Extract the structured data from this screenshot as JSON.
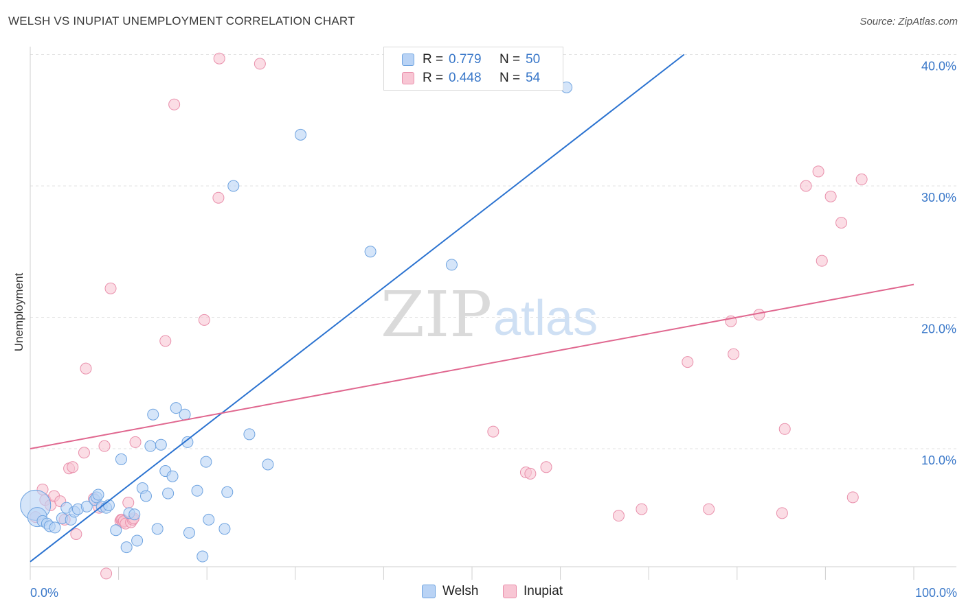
{
  "title": "WELSH VS INUPIAT UNEMPLOYMENT CORRELATION CHART",
  "source": "Source: ZipAtlas.com",
  "watermark": {
    "zip": "ZIP",
    "atlas": "atlas"
  },
  "colors": {
    "welsh_fill": "#b9d3f5",
    "welsh_stroke": "#6ea3e0",
    "welsh_line": "#2a72d0",
    "inupiat_fill": "#f8c6d4",
    "inupiat_stroke": "#e98fab",
    "inupiat_line": "#e0678f",
    "tick_label": "#3a78c9",
    "grid": "#e2e2e2"
  },
  "legend": {
    "rows": [
      {
        "r_label": "R =",
        "r_value": "0.779",
        "n_label": "N =",
        "n_value": "50"
      },
      {
        "r_label": "R =",
        "r_value": "0.448",
        "n_label": "N =",
        "n_value": "54"
      }
    ]
  },
  "bottom_legend": [
    "Welsh",
    "Inupiat"
  ],
  "chart_data": {
    "type": "scatter",
    "title": "WELSH VS INUPIAT UNEMPLOYMENT CORRELATION CHART",
    "xlabel": "",
    "ylabel": "Unemployment",
    "xlim": [
      0,
      100
    ],
    "ylim": [
      0,
      41
    ],
    "x_tick_labels": [
      "0.0%",
      "100.0%"
    ],
    "y_ticks": [
      10,
      20,
      30,
      40
    ],
    "y_tick_labels": [
      "10.0%",
      "20.0%",
      "30.0%",
      "40.0%"
    ],
    "grid": "horizontal dashed",
    "legend_position": "top-center",
    "series": [
      {
        "name": "Welsh",
        "r": 0.779,
        "n": 50,
        "trend": {
          "x0": 0,
          "y0": 1.4,
          "x1": 74,
          "y1": 40.0
        },
        "points": [
          [
            0.6,
            5.7,
            22
          ],
          [
            0.8,
            4.8,
            14
          ],
          [
            1.4,
            4.5,
            8
          ],
          [
            1.9,
            4.3,
            8
          ],
          [
            2.2,
            4.1,
            8
          ],
          [
            2.8,
            4.0,
            8
          ],
          [
            3.6,
            4.7,
            8
          ],
          [
            4.1,
            5.5,
            8
          ],
          [
            4.6,
            4.6,
            8
          ],
          [
            5.0,
            5.2,
            8
          ],
          [
            5.4,
            5.4,
            8
          ],
          [
            6.4,
            5.6,
            8
          ],
          [
            7.3,
            6.1,
            8
          ],
          [
            7.5,
            6.3,
            8
          ],
          [
            7.7,
            6.5,
            8
          ],
          [
            8.1,
            5.6,
            8
          ],
          [
            8.6,
            5.5,
            8
          ],
          [
            8.9,
            5.7,
            8
          ],
          [
            9.7,
            3.8,
            8
          ],
          [
            10.3,
            9.2,
            8
          ],
          [
            10.9,
            2.5,
            8
          ],
          [
            11.2,
            5.1,
            8
          ],
          [
            11.8,
            5.0,
            8
          ],
          [
            12.1,
            3.0,
            8
          ],
          [
            12.7,
            7.0,
            8
          ],
          [
            13.1,
            6.4,
            8
          ],
          [
            13.6,
            10.2,
            8
          ],
          [
            13.9,
            12.6,
            8
          ],
          [
            14.4,
            3.9,
            8
          ],
          [
            14.8,
            10.3,
            8
          ],
          [
            15.3,
            8.3,
            8
          ],
          [
            15.6,
            6.6,
            8
          ],
          [
            16.1,
            7.9,
            8
          ],
          [
            16.5,
            13.1,
            8
          ],
          [
            17.5,
            12.6,
            8
          ],
          [
            17.8,
            10.5,
            8
          ],
          [
            18.0,
            3.6,
            8
          ],
          [
            18.9,
            6.8,
            8
          ],
          [
            19.5,
            1.8,
            8
          ],
          [
            19.9,
            9.0,
            8
          ],
          [
            20.2,
            4.6,
            8
          ],
          [
            22.0,
            3.9,
            8
          ],
          [
            23.0,
            30.0,
            8
          ],
          [
            24.8,
            11.1,
            8
          ],
          [
            26.9,
            8.8,
            8
          ],
          [
            30.6,
            33.9,
            8
          ],
          [
            38.5,
            25.0,
            8
          ],
          [
            47.7,
            24.0,
            8
          ],
          [
            60.7,
            37.5,
            8
          ],
          [
            22.3,
            6.7,
            8
          ]
        ]
      },
      {
        "name": "Inupiat",
        "r": 0.448,
        "n": 54,
        "trend": {
          "x0": 0,
          "y0": 10.0,
          "x1": 100,
          "y1": 22.5
        },
        "points": [
          [
            0.6,
            4.8,
            8
          ],
          [
            1.4,
            6.9,
            8
          ],
          [
            1.7,
            6.1,
            8
          ],
          [
            2.3,
            5.7,
            8
          ],
          [
            2.7,
            6.4,
            8
          ],
          [
            3.4,
            6.0,
            8
          ],
          [
            3.9,
            4.6,
            8
          ],
          [
            4.4,
            8.5,
            8
          ],
          [
            4.8,
            8.6,
            8
          ],
          [
            5.2,
            3.5,
            8
          ],
          [
            6.1,
            9.7,
            8
          ],
          [
            6.3,
            16.1,
            8
          ],
          [
            7.2,
            6.2,
            8
          ],
          [
            7.8,
            5.5,
            8
          ],
          [
            8.4,
            10.2,
            8
          ],
          [
            8.6,
            0.5,
            8
          ],
          [
            9.1,
            22.2,
            8
          ],
          [
            10.2,
            4.5,
            8
          ],
          [
            10.3,
            4.6,
            8
          ],
          [
            10.4,
            4.6,
            8
          ],
          [
            10.5,
            4.4,
            8
          ],
          [
            10.6,
            4.5,
            8
          ],
          [
            10.8,
            4.3,
            8
          ],
          [
            11.1,
            5.9,
            8
          ],
          [
            11.4,
            4.4,
            8
          ],
          [
            11.6,
            4.6,
            8
          ],
          [
            11.7,
            4.7,
            8
          ],
          [
            11.9,
            10.5,
            8
          ],
          [
            15.3,
            18.2,
            8
          ],
          [
            16.3,
            36.2,
            8
          ],
          [
            19.7,
            19.8,
            8
          ],
          [
            21.3,
            29.1,
            8
          ],
          [
            21.4,
            39.7,
            8
          ],
          [
            26.0,
            39.3,
            8
          ],
          [
            52.4,
            11.3,
            8
          ],
          [
            56.1,
            8.2,
            8
          ],
          [
            56.6,
            8.1,
            8
          ],
          [
            58.4,
            8.6,
            8
          ],
          [
            66.6,
            4.9,
            8
          ],
          [
            69.2,
            5.4,
            8
          ],
          [
            74.4,
            16.6,
            8
          ],
          [
            76.8,
            5.4,
            8
          ],
          [
            79.3,
            19.7,
            8
          ],
          [
            79.6,
            17.2,
            8
          ],
          [
            82.5,
            20.2,
            8
          ],
          [
            85.1,
            5.1,
            8
          ],
          [
            85.4,
            11.5,
            8
          ],
          [
            87.8,
            30.0,
            8
          ],
          [
            89.2,
            31.1,
            8
          ],
          [
            89.6,
            24.3,
            8
          ],
          [
            90.6,
            29.2,
            8
          ],
          [
            91.8,
            27.2,
            8
          ],
          [
            93.1,
            6.3,
            8
          ],
          [
            94.1,
            30.5,
            8
          ]
        ]
      }
    ]
  }
}
